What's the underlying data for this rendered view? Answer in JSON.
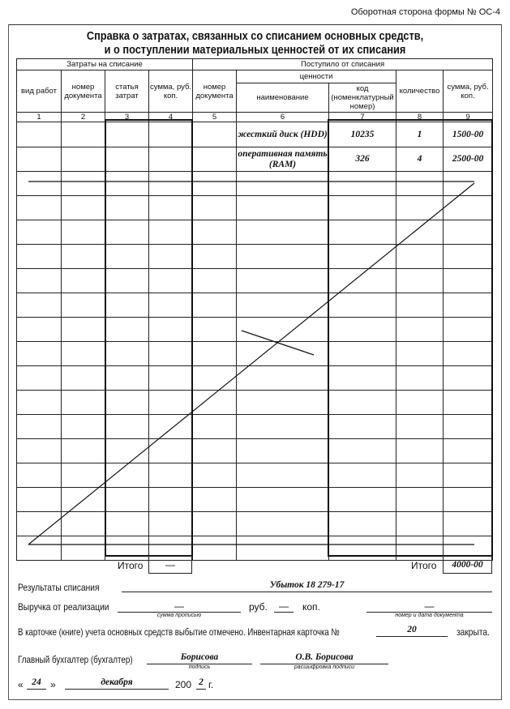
{
  "form_ref": "Оборотная сторона формы № ОС-4",
  "title_line1": "Справка о затратах, связанных со списанием основных средств,",
  "title_line2": "и о поступлении материальных ценностей от их списания",
  "header": {
    "group_costs": "Затраты на списание",
    "group_received": "Поступило от списания",
    "valuables": "ценности",
    "columns": [
      "вид работ",
      "номер документа",
      "статья затрат",
      "сумма, руб. коп.",
      "номер документа",
      "наименование",
      "код (номенклатурный номер)",
      "количество",
      "сумма, руб. коп."
    ],
    "numbers": [
      "1",
      "2",
      "3",
      "4",
      "5",
      "6",
      "7",
      "8",
      "9"
    ]
  },
  "rows": [
    {
      "name": "жесткий диск (HDD)",
      "code": "10235",
      "qty": "1",
      "sum": "1500-00"
    },
    {
      "name": "оперативная память (RAM)",
      "code": "326",
      "qty": "4",
      "sum": "2500-00"
    }
  ],
  "totals": {
    "label_left": "Итого",
    "value_left": "—",
    "label_right": "Итого",
    "value_right": "4000-00"
  },
  "results": {
    "label": "Результаты списания",
    "value": "Убыток 18 279-17"
  },
  "revenue": {
    "label": "Выручка от реализации",
    "amount": "—",
    "amount_caption": "сумма прописью",
    "rub": "руб.",
    "kop_value": "—",
    "kop": "коп.",
    "doc": "—",
    "doc_caption": "номер и дата документа"
  },
  "card": {
    "text": "В карточке (книге) учета основных средств выбытие отмечено. Инвентарная карточка №",
    "number": "20",
    "closed": "закрыта."
  },
  "accountant": {
    "label": "Главный бухгалтер (бухгалтер)",
    "signature": "Борисова",
    "signature_caption": "подпись",
    "name": "О.В. Борисова",
    "name_caption": "расшифровка подписи"
  },
  "date": {
    "open_quote": "«",
    "day": "24",
    "close_quote": "»",
    "month": "декабря",
    "year_prefix": "200",
    "year_digit": "2",
    "year_suffix": "г."
  }
}
